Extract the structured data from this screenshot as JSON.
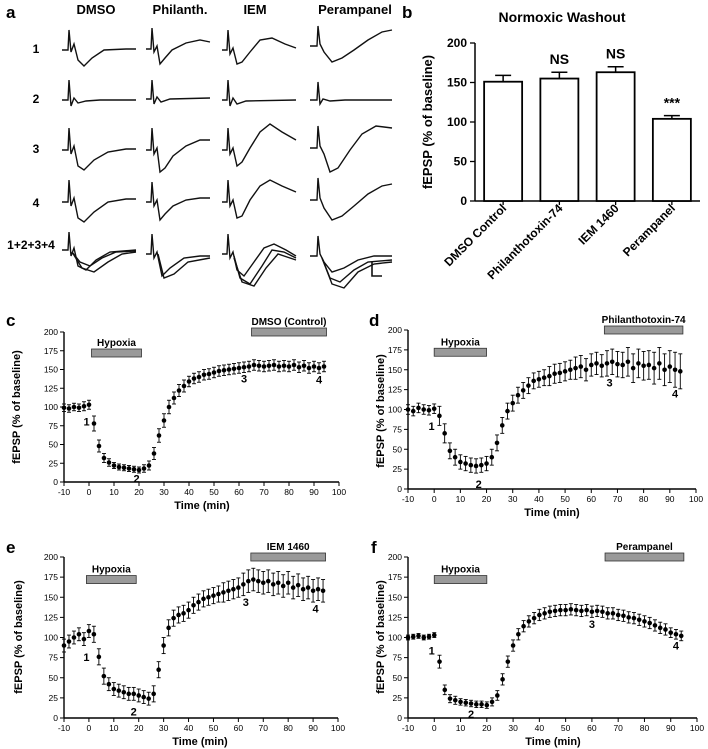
{
  "panel_labels": [
    "a",
    "b",
    "c",
    "d",
    "e",
    "f"
  ],
  "traces": {
    "columns": [
      "DMSO",
      "Philanth.",
      "IEM",
      "Perampanel"
    ],
    "rows": [
      "1",
      "2",
      "3",
      "4",
      "1+2+3+4"
    ],
    "scale_bar": "L"
  },
  "chart_data": [
    {
      "id": "b",
      "type": "bar",
      "title": "Normoxic Washout",
      "xlabel": "",
      "ylabel": "fEPSP (% of baseline)",
      "categories": [
        "DMSO Control",
        "Philanthotoxin-74",
        "IEM 1460",
        "Perampanel"
      ],
      "values": [
        151,
        155,
        163,
        104
      ],
      "errors": [
        8,
        8,
        7,
        4
      ],
      "annotations": [
        "",
        "NS",
        "NS",
        "***"
      ],
      "ylim": [
        0,
        200
      ],
      "yticks": [
        0,
        50,
        100,
        150,
        200
      ]
    },
    {
      "id": "c",
      "type": "scatter",
      "xlabel": "Time (min)",
      "ylabel": "fEPSP (% of baseline)",
      "xlim": [
        -10,
        100
      ],
      "ylim": [
        0,
        200
      ],
      "xticks": [
        -10,
        0,
        10,
        20,
        30,
        40,
        50,
        60,
        70,
        80,
        90,
        100
      ],
      "yticks": [
        0,
        25,
        50,
        75,
        100,
        125,
        150,
        175,
        200
      ],
      "periods": [
        {
          "label": "Hypoxia",
          "start": 1,
          "end": 21
        },
        {
          "label": "DMSO (Control)",
          "start": 65,
          "end": 95
        }
      ],
      "markers": [
        {
          "label": "1",
          "x": -1
        },
        {
          "label": "2",
          "x": 19
        },
        {
          "label": "3",
          "x": 62
        },
        {
          "label": "4",
          "x": 92
        }
      ],
      "series": [
        {
          "name": "fEPSP",
          "x": [
            -10,
            -8,
            -6,
            -4,
            -2,
            0,
            2,
            4,
            6,
            8,
            10,
            12,
            14,
            16,
            18,
            20,
            22,
            24,
            26,
            28,
            30,
            32,
            34,
            36,
            38,
            40,
            42,
            44,
            46,
            48,
            50,
            52,
            54,
            56,
            58,
            60,
            62,
            64,
            66,
            68,
            70,
            72,
            74,
            76,
            78,
            80,
            82,
            84,
            86,
            88,
            90,
            92,
            94
          ],
          "y": [
            99,
            98,
            100,
            99,
            101,
            103,
            78,
            48,
            32,
            26,
            22,
            20,
            19,
            18,
            17,
            16,
            18,
            22,
            38,
            62,
            82,
            100,
            112,
            122,
            128,
            134,
            138,
            140,
            143,
            144,
            146,
            148,
            149,
            150,
            151,
            152,
            153,
            154,
            156,
            155,
            154,
            155,
            156,
            154,
            155,
            154,
            156,
            153,
            155,
            152,
            154,
            152,
            154
          ],
          "err": [
            5,
            5,
            5,
            5,
            6,
            6,
            10,
            8,
            6,
            5,
            4,
            4,
            4,
            4,
            4,
            4,
            5,
            6,
            8,
            9,
            9,
            9,
            8,
            8,
            8,
            7,
            7,
            7,
            7,
            7,
            7,
            7,
            7,
            7,
            7,
            7,
            7,
            7,
            7,
            7,
            7,
            7,
            7,
            7,
            7,
            7,
            7,
            7,
            7,
            7,
            7,
            7,
            7
          ]
        }
      ]
    },
    {
      "id": "d",
      "type": "scatter",
      "xlabel": "Time (min)",
      "ylabel": "fEPSP (% of baseline)",
      "xlim": [
        -10,
        100
      ],
      "ylim": [
        0,
        200
      ],
      "xticks": [
        -10,
        0,
        10,
        20,
        30,
        40,
        50,
        60,
        70,
        80,
        90,
        100
      ],
      "yticks": [
        0,
        25,
        50,
        75,
        100,
        125,
        150,
        175,
        200
      ],
      "periods": [
        {
          "label": "Hypoxia",
          "start": 0,
          "end": 20
        },
        {
          "label": "Philanthotoxin-74",
          "start": 65,
          "end": 95
        }
      ],
      "markers": [
        {
          "label": "1",
          "x": -1
        },
        {
          "label": "2",
          "x": 17
        },
        {
          "label": "3",
          "x": 67
        },
        {
          "label": "4",
          "x": 92
        }
      ],
      "series": [
        {
          "name": "fEPSP",
          "x": [
            -10,
            -8,
            -6,
            -4,
            -2,
            0,
            2,
            4,
            6,
            8,
            10,
            12,
            14,
            16,
            18,
            20,
            22,
            24,
            26,
            28,
            30,
            32,
            34,
            36,
            38,
            40,
            42,
            44,
            46,
            48,
            50,
            52,
            54,
            56,
            58,
            60,
            62,
            64,
            66,
            68,
            70,
            72,
            74,
            76,
            78,
            80,
            82,
            84,
            86,
            88,
            90,
            92,
            94
          ],
          "y": [
            100,
            98,
            102,
            100,
            99,
            101,
            92,
            70,
            48,
            40,
            34,
            32,
            30,
            29,
            30,
            32,
            40,
            58,
            80,
            98,
            108,
            118,
            124,
            130,
            136,
            138,
            140,
            142,
            145,
            146,
            148,
            150,
            152,
            154,
            150,
            156,
            158,
            155,
            158,
            160,
            157,
            156,
            160,
            152,
            158,
            155,
            156,
            152,
            158,
            150,
            154,
            150,
            148
          ],
          "err": [
            6,
            6,
            6,
            6,
            6,
            6,
            12,
            12,
            10,
            10,
            9,
            9,
            9,
            9,
            9,
            9,
            10,
            10,
            10,
            10,
            10,
            10,
            10,
            10,
            10,
            10,
            10,
            12,
            12,
            12,
            12,
            12,
            14,
            14,
            14,
            14,
            14,
            14,
            16,
            16,
            16,
            16,
            18,
            18,
            18,
            18,
            18,
            20,
            20,
            20,
            20,
            22,
            22
          ]
        }
      ]
    },
    {
      "id": "e",
      "type": "scatter",
      "xlabel": "Time (min)",
      "ylabel": "fEPSP (% of baseline)",
      "xlim": [
        -10,
        100
      ],
      "ylim": [
        0,
        200
      ],
      "xticks": [
        -10,
        0,
        10,
        20,
        30,
        40,
        50,
        60,
        70,
        80,
        90,
        100
      ],
      "yticks": [
        0,
        25,
        50,
        75,
        100,
        125,
        150,
        175,
        200
      ],
      "periods": [
        {
          "label": "Hypoxia",
          "start": -1,
          "end": 19
        },
        {
          "label": "IEM 1460",
          "start": 65,
          "end": 95
        }
      ],
      "markers": [
        {
          "label": "1",
          "x": -1
        },
        {
          "label": "2",
          "x": 18
        },
        {
          "label": "3",
          "x": 63
        },
        {
          "label": "4",
          "x": 91
        }
      ],
      "series": [
        {
          "name": "fEPSP",
          "x": [
            -10,
            -8,
            -6,
            -4,
            -2,
            0,
            2,
            4,
            6,
            8,
            10,
            12,
            14,
            16,
            18,
            20,
            22,
            24,
            26,
            28,
            30,
            32,
            34,
            36,
            38,
            40,
            42,
            44,
            46,
            48,
            50,
            52,
            54,
            56,
            58,
            60,
            62,
            64,
            66,
            68,
            70,
            72,
            74,
            76,
            78,
            80,
            82,
            84,
            86,
            88,
            90,
            92,
            94
          ],
          "y": [
            90,
            95,
            100,
            104,
            98,
            108,
            104,
            76,
            52,
            42,
            36,
            34,
            32,
            30,
            30,
            28,
            26,
            24,
            30,
            60,
            90,
            112,
            124,
            128,
            130,
            134,
            140,
            144,
            148,
            150,
            152,
            154,
            156,
            158,
            160,
            162,
            166,
            170,
            172,
            170,
            168,
            170,
            166,
            168,
            164,
            168,
            162,
            165,
            160,
            162,
            158,
            160,
            158
          ],
          "err": [
            8,
            8,
            8,
            8,
            8,
            8,
            10,
            10,
            10,
            8,
            8,
            8,
            8,
            8,
            8,
            8,
            8,
            8,
            10,
            10,
            10,
            10,
            10,
            10,
            10,
            10,
            10,
            10,
            10,
            10,
            10,
            10,
            12,
            12,
            12,
            12,
            14,
            14,
            14,
            14,
            14,
            14,
            14,
            14,
            14,
            14,
            14,
            14,
            14,
            14,
            14,
            14,
            14
          ]
        }
      ]
    },
    {
      "id": "f",
      "type": "scatter",
      "xlabel": "Time (min)",
      "ylabel": "fEPSP (% of baseline)",
      "xlim": [
        -10,
        100
      ],
      "ylim": [
        0,
        200
      ],
      "xticks": [
        -10,
        0,
        10,
        20,
        30,
        40,
        50,
        60,
        70,
        80,
        90,
        100
      ],
      "yticks": [
        0,
        25,
        50,
        75,
        100,
        125,
        150,
        175,
        200
      ],
      "periods": [
        {
          "label": "Hypoxia",
          "start": 0,
          "end": 20
        },
        {
          "label": "Perampanel",
          "start": 65,
          "end": 95
        }
      ],
      "markers": [
        {
          "label": "1",
          "x": -1
        },
        {
          "label": "2",
          "x": 14
        },
        {
          "label": "3",
          "x": 60
        },
        {
          "label": "4",
          "x": 92
        }
      ],
      "series": [
        {
          "name": "fEPSP",
          "x": [
            -10,
            -8,
            -6,
            -4,
            -2,
            0,
            2,
            4,
            6,
            8,
            10,
            12,
            14,
            16,
            18,
            20,
            22,
            24,
            26,
            28,
            30,
            32,
            34,
            36,
            38,
            40,
            42,
            44,
            46,
            48,
            50,
            52,
            54,
            56,
            58,
            60,
            62,
            64,
            66,
            68,
            70,
            72,
            74,
            76,
            78,
            80,
            82,
            84,
            86,
            88,
            90,
            92,
            94
          ],
          "y": [
            100,
            101,
            102,
            100,
            101,
            103,
            70,
            35,
            24,
            22,
            20,
            19,
            18,
            17,
            17,
            16,
            20,
            28,
            48,
            70,
            90,
            104,
            114,
            120,
            124,
            128,
            130,
            132,
            133,
            134,
            134,
            135,
            134,
            133,
            134,
            132,
            133,
            132,
            130,
            130,
            128,
            127,
            125,
            124,
            122,
            120,
            118,
            115,
            112,
            110,
            106,
            104,
            102
          ],
          "err": [
            3,
            3,
            3,
            3,
            3,
            3,
            8,
            6,
            5,
            5,
            4,
            4,
            4,
            4,
            4,
            4,
            5,
            6,
            7,
            7,
            7,
            7,
            7,
            7,
            7,
            7,
            7,
            7,
            7,
            7,
            7,
            7,
            7,
            7,
            7,
            7,
            7,
            7,
            7,
            7,
            7,
            7,
            7,
            7,
            7,
            7,
            7,
            7,
            7,
            7,
            6,
            6,
            6
          ]
        }
      ]
    }
  ]
}
